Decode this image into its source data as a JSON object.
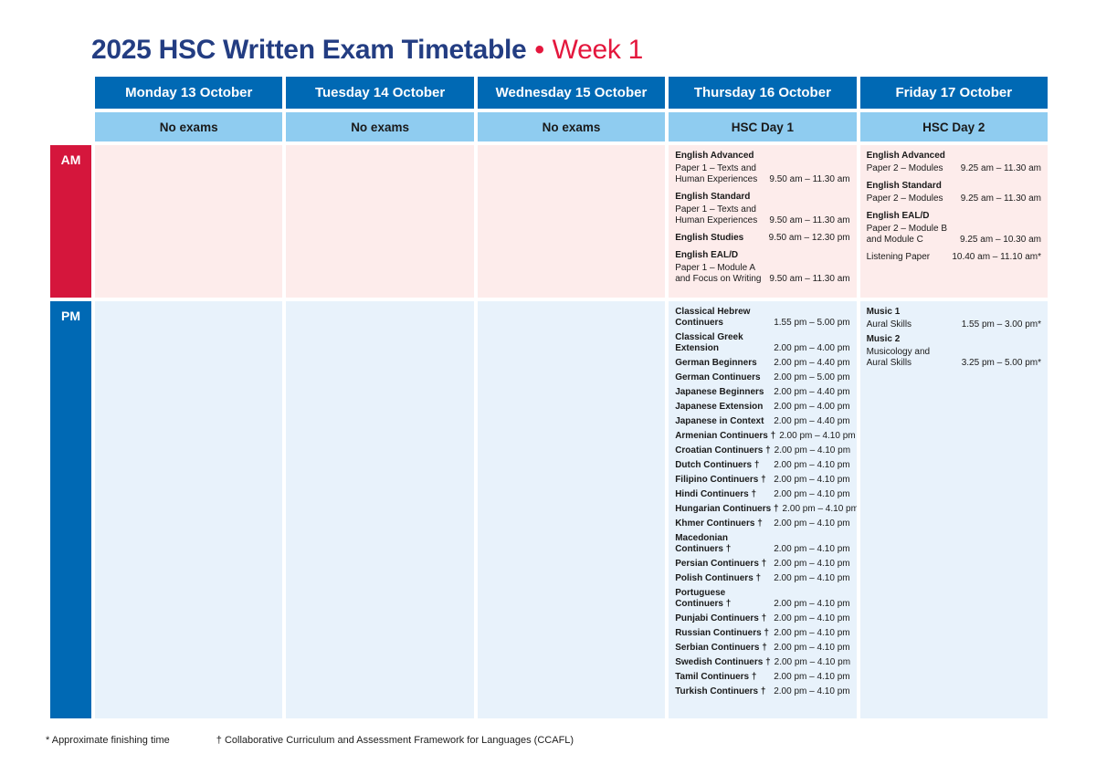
{
  "title": {
    "main": "2025 HSC Written Exam Timetable",
    "separator": "•",
    "week": "Week 1"
  },
  "row_labels": {
    "am": "AM",
    "pm": "PM"
  },
  "colors": {
    "navy": "#233d82",
    "week_red": "#e4173d",
    "header_blue": "#0069b4",
    "subheader_blue": "#8fccf0",
    "am_red": "#d5163c",
    "pm_blue": "#0069b4",
    "am_bg": "#fdeceb",
    "pm_bg": "#e8f2fb",
    "text_dark": "#1a1a1a"
  },
  "columns": [
    {
      "day": "Monday 13 October",
      "status": "No exams",
      "am": [],
      "pm": []
    },
    {
      "day": "Tuesday 14 October",
      "status": "No exams",
      "am": [],
      "pm": []
    },
    {
      "day": "Wednesday 15 October",
      "status": "No exams",
      "am": [],
      "pm": []
    },
    {
      "day": "Thursday 16 October",
      "status": "HSC Day 1",
      "am": [
        {
          "name": [
            "English Advanced"
          ],
          "detail": [
            "Paper 1 – Texts and",
            "Human Experiences"
          ],
          "time": "9.50 am – 11.30 am"
        },
        {
          "name": [
            "English Standard"
          ],
          "detail": [
            "Paper 1 – Texts and",
            "Human Experiences"
          ],
          "time": "9.50 am – 11.30 am"
        },
        {
          "name": [
            "English Studies"
          ],
          "time": "9.50 am – 12.30 pm"
        },
        {
          "name": [
            "English EAL/D"
          ],
          "detail": [
            "Paper 1 – Module A",
            "and Focus on Writing"
          ],
          "time": "9.50 am – 11.30 am"
        }
      ],
      "pm": [
        {
          "name": [
            "Classical Hebrew",
            "Continuers"
          ],
          "time": "1.55 pm – 5.00 pm"
        },
        {
          "name": [
            "Classical Greek",
            "Extension"
          ],
          "time": "2.00 pm – 4.00 pm"
        },
        {
          "name": [
            "German Beginners"
          ],
          "time": "2.00 pm – 4.40 pm"
        },
        {
          "name": [
            "German Continuers"
          ],
          "time": "2.00 pm – 5.00 pm"
        },
        {
          "name": [
            "Japanese Beginners"
          ],
          "time": "2.00 pm – 4.40 pm"
        },
        {
          "name": [
            "Japanese Extension"
          ],
          "time": "2.00 pm – 4.00 pm"
        },
        {
          "name": [
            "Japanese in Context"
          ],
          "time": "2.00 pm – 4.40 pm"
        },
        {
          "name": [
            "Armenian Continuers †"
          ],
          "time": "2.00 pm – 4.10 pm"
        },
        {
          "name": [
            "Croatian Continuers †"
          ],
          "time": "2.00 pm – 4.10 pm"
        },
        {
          "name": [
            "Dutch Continuers †"
          ],
          "time": "2.00 pm – 4.10 pm"
        },
        {
          "name": [
            "Filipino Continuers †"
          ],
          "time": "2.00 pm – 4.10 pm"
        },
        {
          "name": [
            "Hindi Continuers †"
          ],
          "time": "2.00 pm – 4.10 pm"
        },
        {
          "name": [
            "Hungarian Continuers †"
          ],
          "time": "2.00 pm – 4.10 pm"
        },
        {
          "name": [
            "Khmer Continuers †"
          ],
          "time": "2.00 pm – 4.10 pm"
        },
        {
          "name": [
            "Macedonian",
            "Continuers †"
          ],
          "time": "2.00 pm – 4.10 pm"
        },
        {
          "name": [
            "Persian Continuers †"
          ],
          "time": "2.00 pm – 4.10 pm"
        },
        {
          "name": [
            "Polish Continuers †"
          ],
          "time": "2.00 pm – 4.10 pm"
        },
        {
          "name": [
            "Portuguese",
            "Continuers †"
          ],
          "time": "2.00 pm – 4.10 pm"
        },
        {
          "name": [
            "Punjabi Continuers †"
          ],
          "time": "2.00 pm – 4.10 pm"
        },
        {
          "name": [
            "Russian Continuers †"
          ],
          "time": "2.00 pm – 4.10 pm"
        },
        {
          "name": [
            "Serbian Continuers †"
          ],
          "time": "2.00 pm – 4.10 pm"
        },
        {
          "name": [
            "Swedish Continuers †"
          ],
          "time": "2.00 pm – 4.10 pm"
        },
        {
          "name": [
            "Tamil Continuers †"
          ],
          "time": "2.00 pm – 4.10 pm"
        },
        {
          "name": [
            "Turkish Continuers †"
          ],
          "time": "2.00 pm – 4.10 pm"
        }
      ]
    },
    {
      "day": "Friday 17 October",
      "status": "HSC Day 2",
      "am": [
        {
          "name": [
            "English Advanced"
          ],
          "detail": [
            "Paper 2 – Modules"
          ],
          "time": "9.25 am – 11.30 am"
        },
        {
          "name": [
            "English Standard"
          ],
          "detail": [
            "Paper 2 – Modules"
          ],
          "time": "9.25 am – 11.30 am"
        },
        {
          "name": [
            "English EAL/D"
          ],
          "detail": [
            "Paper 2 – Module B",
            "and Module C"
          ],
          "time": "9.25 am – 10.30 am"
        },
        {
          "detail": [
            "Listening Paper"
          ],
          "time": "10.40 am – 11.10 am*"
        }
      ],
      "pm": [
        {
          "name": [
            "Music 1"
          ],
          "detail": [
            "Aural Skills"
          ],
          "time": "1.55 pm – 3.00 pm*"
        },
        {
          "name": [
            "Music 2"
          ],
          "detail": [
            "Musicology and",
            "Aural Skills"
          ],
          "time": "3.25 pm – 5.00 pm*"
        }
      ]
    }
  ],
  "footnotes": {
    "asterisk": "* Approximate finishing time",
    "dagger": "† Collaborative Curriculum and Assessment Framework for Languages (CCAFL)"
  }
}
